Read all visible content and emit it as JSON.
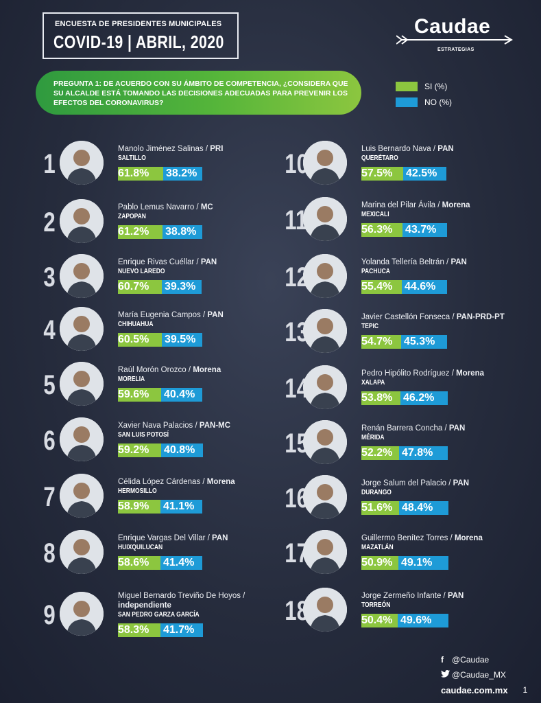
{
  "header": {
    "subtitle": "ENCUESTA DE PRESIDENTES MUNICIPALES",
    "title": "COVID-19 | ABRIL, 2020"
  },
  "logo": {
    "name": "Caudae",
    "tagline": "ESTRATEGIAS"
  },
  "question": {
    "text": "PREGUNTA 1: DE ACUERDO CON SU ÁMBITO DE COMPETENCIA, ¿CONSIDERA QUE SU ALCALDE ESTÁ TOMANDO LAS DECISIONES ADECUADAS PARA PREVENIR LOS EFECTOS DEL CORONAVIRUS?"
  },
  "legend": [
    {
      "label": "SI (%)",
      "color": "#8cc63f"
    },
    {
      "label": "NO (%)",
      "color": "#1e9bd7"
    }
  ],
  "mayors": [
    {
      "rank": "1",
      "name": "Manolo Jiménez Salinas",
      "party": "PRI",
      "city": "SALTILLO",
      "si": "61.8%",
      "no": "38.2%",
      "si_value": 61.8
    },
    {
      "rank": "2",
      "name": "Pablo Lemus Navarro",
      "party": "MC",
      "city": "ZAPOPAN",
      "si": "61.2%",
      "no": "38.8%",
      "si_value": 61.2
    },
    {
      "rank": "3",
      "name": "Enrique Rivas Cuéllar",
      "party": "PAN",
      "city": "NUEVO LAREDO",
      "si": "60.7%",
      "no": "39.3%",
      "si_value": 60.7
    },
    {
      "rank": "4",
      "name": "María Eugenia Campos",
      "party": "PAN",
      "city": "CHIHUAHUA",
      "si": "60.5%",
      "no": "39.5%",
      "si_value": 60.5
    },
    {
      "rank": "5",
      "name": "Raúl Morón Orozco",
      "party": "Morena",
      "city": "MORELIA",
      "si": "59.6%",
      "no": "40.4%",
      "si_value": 59.6
    },
    {
      "rank": "6",
      "name": "Xavier Nava Palacios",
      "party": "PAN-MC",
      "city": "SAN LUIS POTOSÍ",
      "si": "59.2%",
      "no": "40.8%",
      "si_value": 59.2
    },
    {
      "rank": "7",
      "name": "Célida López Cárdenas",
      "party": "Morena",
      "city": "HERMOSILLO",
      "si": "58.9%",
      "no": "41.1%",
      "si_value": 58.9
    },
    {
      "rank": "8",
      "name": "Enrique Vargas Del Villar",
      "party": "PAN",
      "city": "HUIXQUILUCAN",
      "si": "58.6%",
      "no": "41.4%",
      "si_value": 58.6
    },
    {
      "rank": "9",
      "name": "Miguel Bernardo Treviño De Hoyos",
      "party": "independiente",
      "city": "SAN PEDRO GARZA GARCÍA",
      "si": "58.3%",
      "no": "41.7%",
      "si_value": 58.3
    },
    {
      "rank": "10",
      "name": "Luis Bernardo Nava",
      "party": "PAN",
      "city": "QUERÉTARO",
      "si": "57.5%",
      "no": "42.5%",
      "si_value": 57.5
    },
    {
      "rank": "11",
      "name": "Marina del Pilar Ávila",
      "party": "Morena",
      "city": "MEXICALI",
      "si": "56.3%",
      "no": "43.7%",
      "si_value": 56.3
    },
    {
      "rank": "12",
      "name": "Yolanda Tellería Beltrán",
      "party": "PAN",
      "city": "PACHUCA",
      "si": "55.4%",
      "no": "44.6%",
      "si_value": 55.4
    },
    {
      "rank": "13",
      "name": "Javier Castellón Fonseca",
      "party": "PAN-PRD-PT",
      "city": "TEPIC",
      "si": "54.7%",
      "no": "45.3%",
      "si_value": 54.7
    },
    {
      "rank": "14",
      "name": "Pedro Hipólito Rodríguez",
      "party": "Morena",
      "city": "XALAPA",
      "si": "53.8%",
      "no": "46.2%",
      "si_value": 53.8
    },
    {
      "rank": "15",
      "name": "Renán Barrera Concha",
      "party": "PAN",
      "city": "MÉRIDA",
      "si": "52.2%",
      "no": "47.8%",
      "si_value": 52.2
    },
    {
      "rank": "16",
      "name": "Jorge Salum del Palacio",
      "party": "PAN",
      "city": "DURANGO",
      "si": "51.6%",
      "no": "48.4%",
      "si_value": 51.6
    },
    {
      "rank": "17",
      "name": "Guillermo Benítez Torres",
      "party": "Morena",
      "city": "MAZATLÁN",
      "si": "50.9%",
      "no": "49.1%",
      "si_value": 50.9
    },
    {
      "rank": "18",
      "name": "Jorge Zermeño Infante",
      "party": "PAN",
      "city": "TORREÓN",
      "si": "50.4%",
      "no": "49.6%",
      "si_value": 50.4
    }
  ],
  "footer": {
    "facebook": "@Caudae",
    "twitter": "@Caudae_MX",
    "website": "caudae.com.mx",
    "page": "1"
  }
}
